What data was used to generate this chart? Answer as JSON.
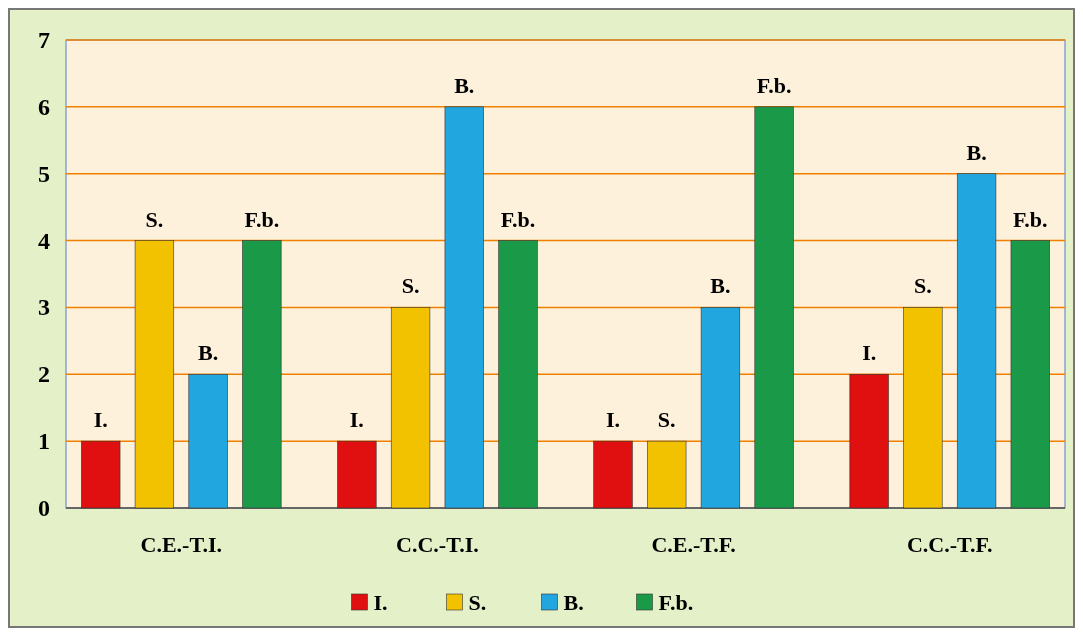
{
  "chart_data": {
    "type": "bar",
    "categories": [
      "C.E.-T.I.",
      "C.C.-T.I.",
      "C.E.-T.F.",
      "C.C.-T.F."
    ],
    "series": [
      {
        "name": "I.",
        "color": "#e01010",
        "values": [
          1,
          1,
          1,
          2
        ],
        "value_labels": [
          "I.",
          "I.",
          "I.",
          "I."
        ]
      },
      {
        "name": "S.",
        "color": "#f2c200",
        "values": [
          4,
          3,
          1,
          3
        ],
        "value_labels": [
          "S.",
          "S.",
          "S.",
          "S."
        ]
      },
      {
        "name": "B.",
        "color": "#22a6e0",
        "values": [
          2,
          6,
          3,
          5
        ],
        "value_labels": [
          "B.",
          "B.",
          "B.",
          "B."
        ]
      },
      {
        "name": "F.b.",
        "color": "#1a9a48",
        "values": [
          4,
          4,
          6,
          4
        ],
        "value_labels": [
          "F.b.",
          "F.b.",
          "F.b.",
          "F.b."
        ]
      }
    ],
    "ylim": [
      0,
      7
    ],
    "yticks": [
      0,
      1,
      2,
      3,
      4,
      5,
      6,
      7
    ],
    "grid": "y",
    "legend": "bottom"
  }
}
